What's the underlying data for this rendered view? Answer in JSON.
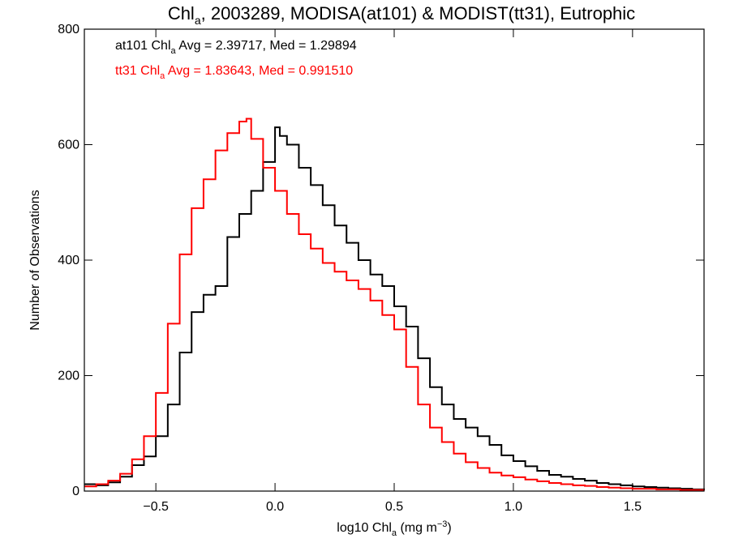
{
  "chart_data": {
    "type": "line",
    "title_parts": {
      "pre": "Chl",
      "sub": "a",
      "post": ", 2003289, MODISA(at101) & MODIST(tt31), Eutrophic"
    },
    "xlabel_parts": {
      "pre": "log10 Chl",
      "sub": "a",
      "mid": " (mg m",
      "sup": "−3",
      "post": ")"
    },
    "ylabel": "Number of Observations",
    "xlim": [
      -0.8,
      1.8
    ],
    "ylim": [
      0,
      800
    ],
    "xticks": [
      -0.5,
      0.0,
      0.5,
      1.0,
      1.5
    ],
    "xtick_labels": [
      "−0.5",
      "0.0",
      "0.5",
      "1.0",
      "1.5"
    ],
    "yticks": [
      0,
      200,
      400,
      600,
      800
    ],
    "ytick_labels": [
      "0",
      "200",
      "400",
      "600",
      "800"
    ],
    "series": [
      {
        "name": "at101",
        "color": "#000000",
        "stats_parts": {
          "pre": "at101 Chl",
          "sub": "a",
          "post": " Avg = 2.39717, Med = 1.29894"
        },
        "x": [
          -0.8,
          -0.75,
          -0.7,
          -0.65,
          -0.6,
          -0.55,
          -0.5,
          -0.45,
          -0.4,
          -0.35,
          -0.3,
          -0.25,
          -0.2,
          -0.15,
          -0.1,
          -0.05,
          0.0,
          0.02,
          0.05,
          0.1,
          0.15,
          0.2,
          0.25,
          0.3,
          0.35,
          0.4,
          0.45,
          0.5,
          0.55,
          0.6,
          0.65,
          0.7,
          0.75,
          0.8,
          0.85,
          0.9,
          0.95,
          1.0,
          1.05,
          1.1,
          1.15,
          1.2,
          1.25,
          1.3,
          1.35,
          1.4,
          1.45,
          1.5,
          1.55,
          1.6,
          1.65,
          1.7,
          1.75,
          1.8
        ],
        "y": [
          12,
          10,
          15,
          25,
          45,
          60,
          95,
          150,
          240,
          310,
          340,
          355,
          440,
          480,
          520,
          570,
          630,
          615,
          600,
          560,
          530,
          495,
          460,
          430,
          400,
          375,
          355,
          320,
          285,
          230,
          180,
          150,
          125,
          110,
          95,
          80,
          62,
          52,
          43,
          35,
          28,
          25,
          21,
          18,
          14,
          12,
          10,
          8,
          7,
          6,
          5,
          4,
          3,
          2
        ]
      },
      {
        "name": "tt31",
        "color": "#ff0000",
        "stats_parts": {
          "pre": "tt31 Chl",
          "sub": "a",
          "post": " Avg = 1.83643, Med = 0.991510"
        },
        "x": [
          -0.8,
          -0.75,
          -0.7,
          -0.65,
          -0.6,
          -0.55,
          -0.5,
          -0.45,
          -0.4,
          -0.35,
          -0.3,
          -0.25,
          -0.2,
          -0.15,
          -0.12,
          -0.1,
          -0.05,
          0.0,
          0.05,
          0.1,
          0.15,
          0.2,
          0.25,
          0.3,
          0.35,
          0.4,
          0.45,
          0.5,
          0.55,
          0.6,
          0.65,
          0.7,
          0.75,
          0.8,
          0.85,
          0.9,
          0.95,
          1.0,
          1.05,
          1.1,
          1.15,
          1.2,
          1.25,
          1.3,
          1.35,
          1.4,
          1.45,
          1.5,
          1.55,
          1.6,
          1.65,
          1.7,
          1.75,
          1.8
        ],
        "y": [
          8,
          12,
          18,
          30,
          55,
          95,
          170,
          290,
          410,
          490,
          540,
          590,
          620,
          640,
          645,
          610,
          560,
          520,
          480,
          445,
          420,
          395,
          380,
          365,
          350,
          330,
          305,
          280,
          215,
          150,
          110,
          85,
          65,
          50,
          40,
          32,
          27,
          24,
          20,
          17,
          14,
          12,
          10,
          9,
          7,
          6,
          5,
          4,
          4,
          3,
          3,
          2,
          2,
          1
        ]
      }
    ]
  }
}
